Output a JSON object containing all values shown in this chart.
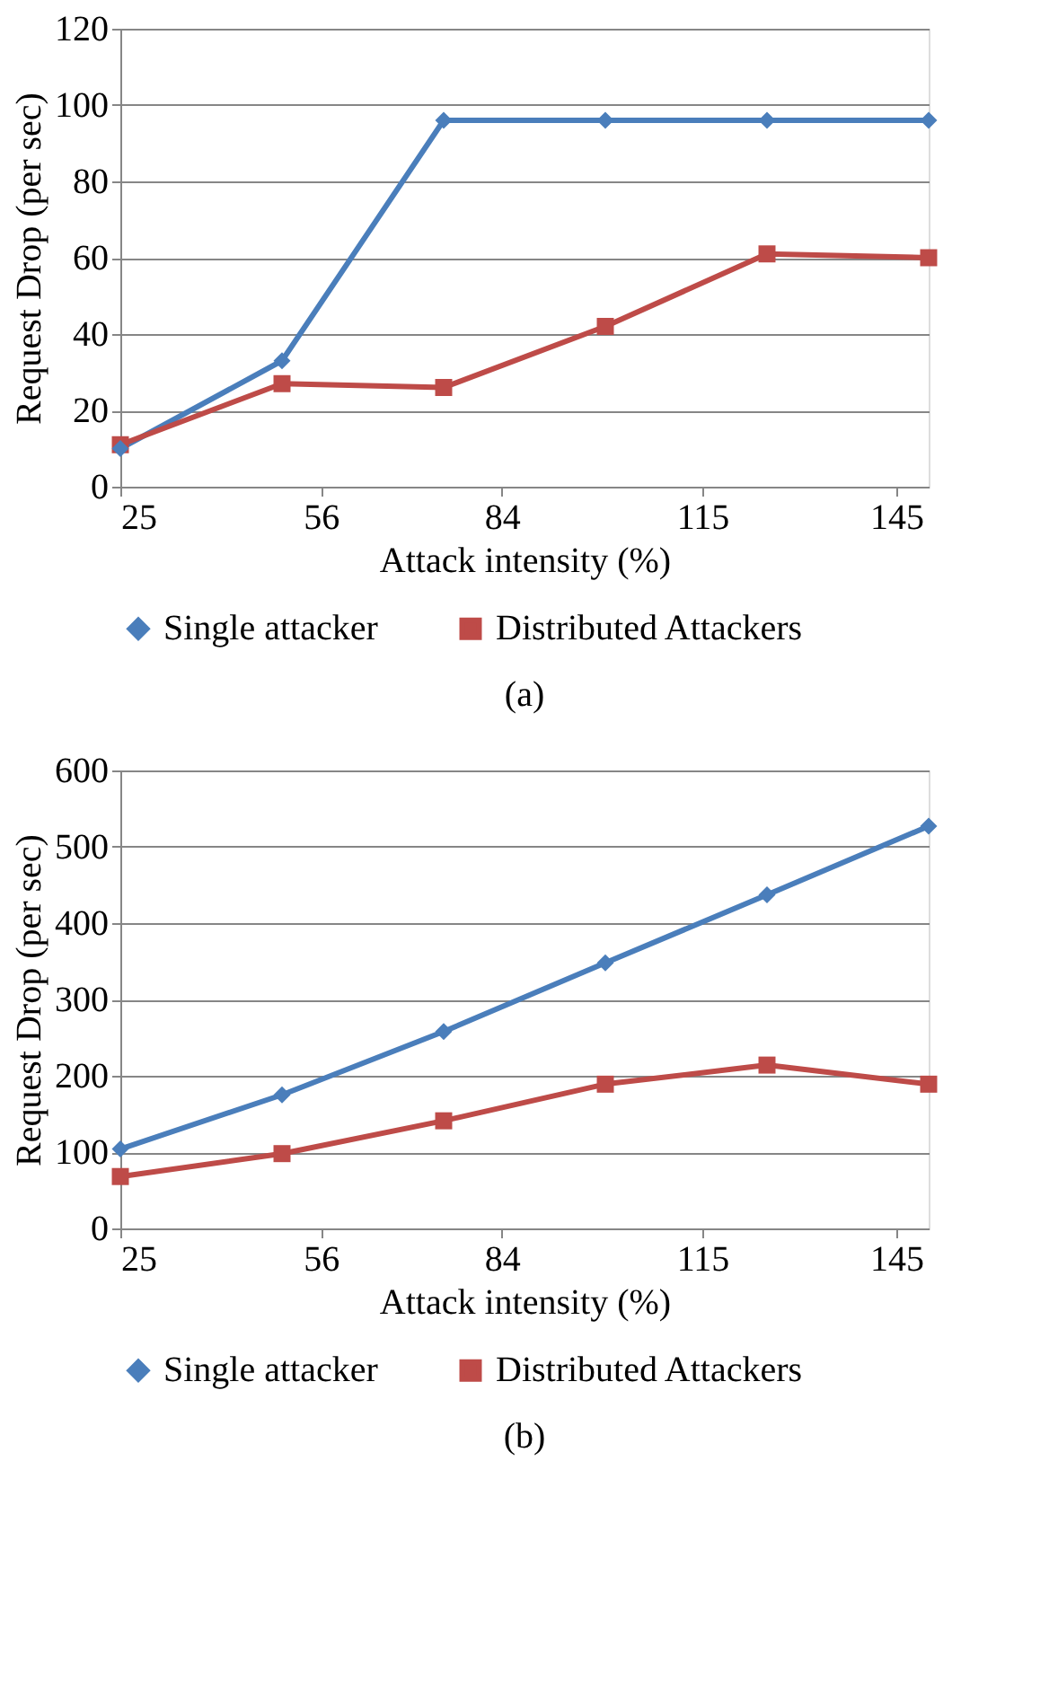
{
  "chart_data": [
    {
      "type": "line",
      "xlabel": "Attack intensity (%)",
      "ylabel": "Request Drop (per sec)",
      "x": [
        25,
        50,
        75,
        100,
        125,
        150
      ],
      "xlim": [
        25,
        150
      ],
      "xticks": [
        25,
        56,
        84,
        115,
        145
      ],
      "ylim": [
        0,
        120
      ],
      "yticks": [
        0,
        20,
        40,
        60,
        80,
        100,
        120
      ],
      "grid": "y",
      "legend": "bottom",
      "line_style": "solid",
      "annotations": [
        "(a)"
      ],
      "series": [
        {
          "name": "Single attacker",
          "color": "#4a7ebb",
          "marker": "diamond",
          "values": [
            10,
            33,
            96,
            96,
            96,
            96
          ]
        },
        {
          "name": "Distributed Attackers",
          "color": "#be4b48",
          "marker": "square",
          "values": [
            11,
            27,
            26,
            42,
            61,
            60
          ]
        }
      ]
    },
    {
      "type": "line",
      "xlabel": "Attack intensity (%)",
      "ylabel": "Request Drop (per sec)",
      "x": [
        25,
        50,
        75,
        100,
        125,
        150
      ],
      "xlim": [
        25,
        150
      ],
      "xticks": [
        25,
        56,
        84,
        115,
        145
      ],
      "ylim": [
        0,
        600
      ],
      "yticks": [
        0,
        100,
        200,
        300,
        400,
        500,
        600
      ],
      "grid": "y",
      "legend": "bottom",
      "line_style": "solid",
      "annotations": [
        "(b)"
      ],
      "series": [
        {
          "name": "Single attacker",
          "color": "#4a7ebb",
          "marker": "diamond",
          "values": [
            104,
            175,
            258,
            348,
            437,
            527
          ]
        },
        {
          "name": "Distributed Attackers",
          "color": "#be4b48",
          "marker": "square",
          "values": [
            68,
            98,
            141,
            189,
            214,
            189
          ]
        }
      ]
    }
  ]
}
